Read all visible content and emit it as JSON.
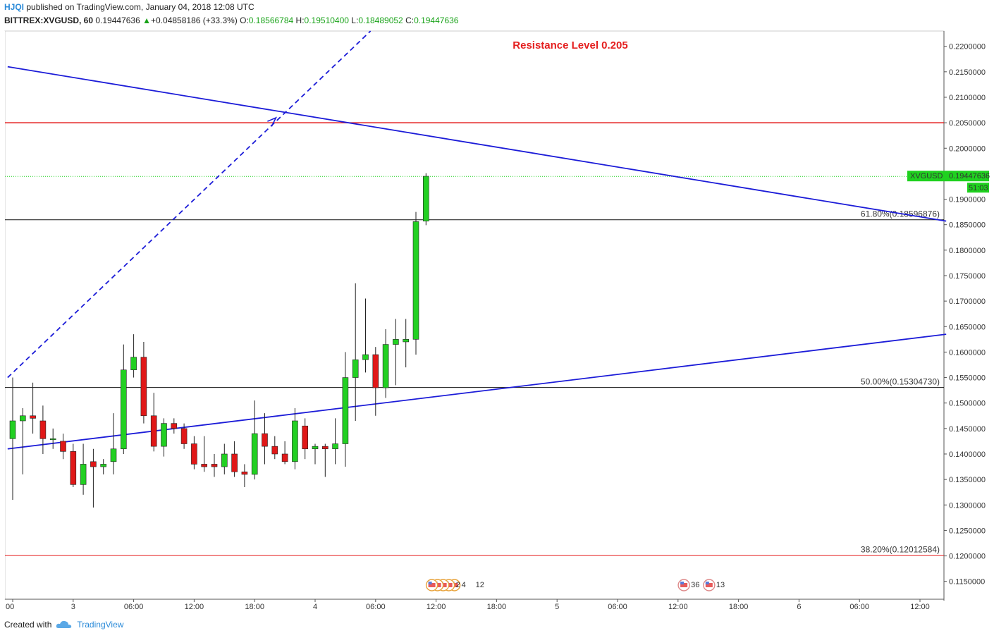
{
  "header": {
    "user": "HJQI",
    "published": "published on TradingView.com, January 04, 2018 12:08 UTC",
    "symbol": "BITTREX:XVGUSD, 60",
    "last": "0.19447636",
    "change": "+0.04858186 (+33.3%)",
    "o_label": "O:",
    "o": "0.18566784",
    "h_label": "H:",
    "h": "0.19510400",
    "l_label": "L:",
    "l": "0.18489052",
    "c_label": "C:",
    "c": "0.19447636"
  },
  "footer": {
    "created": "Created with",
    "brand": "TradingView"
  },
  "colors": {
    "up": "#22d022",
    "down": "#e01818",
    "trend": "#1c1cd8",
    "resistance": "#e41e1e",
    "last": "#1fd11f"
  },
  "chart_data": {
    "type": "candlestick",
    "title": "Resistance Level 0.205",
    "ylim": [
      0.1115,
      0.223
    ],
    "y_ticks": [
      0.115,
      0.12,
      0.125,
      0.13,
      0.135,
      0.14,
      0.145,
      0.15,
      0.155,
      0.16,
      0.165,
      0.17,
      0.175,
      0.18,
      0.185,
      0.19,
      0.195,
      0.2,
      0.205,
      0.21,
      0.215,
      0.22
    ],
    "y_tick_labels": [
      "0.1150000",
      "0.1200000",
      "0.1250000",
      "0.1300000",
      "0.1350000",
      "0.1400000",
      "0.1450000",
      "0.1500000",
      "0.1550000",
      "0.1600000",
      "0.1650000",
      "0.1700000",
      "0.1750000",
      "0.1800000",
      "0.1850000",
      "0.1900000",
      "0.1950000",
      "0.2000000",
      "0.2050000",
      "0.2100000",
      "0.2150000",
      "0.2200000"
    ],
    "x_ticks": [
      {
        "i": 0,
        "label": "00"
      },
      {
        "i": 6,
        "label": "3"
      },
      {
        "i": 12,
        "label": "06:00"
      },
      {
        "i": 18,
        "label": "12:00"
      },
      {
        "i": 24,
        "label": "18:00"
      },
      {
        "i": 30,
        "label": "4"
      },
      {
        "i": 36,
        "label": "06:00"
      },
      {
        "i": 42,
        "label": "12:00"
      },
      {
        "i": 48,
        "label": "18:00"
      },
      {
        "i": 54,
        "label": "5"
      },
      {
        "i": 60,
        "label": "06:00"
      },
      {
        "i": 66,
        "label": "12:00"
      },
      {
        "i": 72,
        "label": "18:00"
      },
      {
        "i": 78,
        "label": "6"
      },
      {
        "i": 84,
        "label": "06:00"
      },
      {
        "i": 90,
        "label": "12:00"
      }
    ],
    "candles": [
      [
        0.143,
        0.155,
        0.131,
        0.1465
      ],
      [
        0.1465,
        0.149,
        0.136,
        0.1475
      ],
      [
        0.1475,
        0.154,
        0.144,
        0.147
      ],
      [
        0.1465,
        0.1495,
        0.14,
        0.143
      ],
      [
        0.143,
        0.145,
        0.141,
        0.143
      ],
      [
        0.1425,
        0.144,
        0.139,
        0.1405
      ],
      [
        0.1405,
        0.142,
        0.1335,
        0.134
      ],
      [
        0.134,
        0.142,
        0.132,
        0.138
      ],
      [
        0.1385,
        0.141,
        0.1295,
        0.1375
      ],
      [
        0.1375,
        0.139,
        0.136,
        0.138
      ],
      [
        0.1385,
        0.148,
        0.136,
        0.141
      ],
      [
        0.141,
        0.1615,
        0.14,
        0.1565
      ],
      [
        0.1565,
        0.1635,
        0.155,
        0.159
      ],
      [
        0.159,
        0.162,
        0.146,
        0.1475
      ],
      [
        0.1475,
        0.152,
        0.1405,
        0.1415
      ],
      [
        0.1415,
        0.147,
        0.1395,
        0.146
      ],
      [
        0.146,
        0.147,
        0.144,
        0.145
      ],
      [
        0.145,
        0.146,
        0.141,
        0.142
      ],
      [
        0.142,
        0.1435,
        0.137,
        0.138
      ],
      [
        0.138,
        0.1435,
        0.1365,
        0.1375
      ],
      [
        0.138,
        0.14,
        0.1355,
        0.1375
      ],
      [
        0.1375,
        0.142,
        0.136,
        0.14
      ],
      [
        0.14,
        0.1425,
        0.1355,
        0.1365
      ],
      [
        0.1365,
        0.138,
        0.1335,
        0.136
      ],
      [
        0.136,
        0.1505,
        0.135,
        0.144
      ],
      [
        0.144,
        0.148,
        0.138,
        0.1415
      ],
      [
        0.1415,
        0.1435,
        0.139,
        0.14
      ],
      [
        0.14,
        0.1425,
        0.138,
        0.1385
      ],
      [
        0.1385,
        0.149,
        0.137,
        0.1465
      ],
      [
        0.1455,
        0.147,
        0.139,
        0.141
      ],
      [
        0.141,
        0.142,
        0.138,
        0.1415
      ],
      [
        0.1415,
        0.142,
        0.1355,
        0.141
      ],
      [
        0.141,
        0.147,
        0.138,
        0.142
      ],
      [
        0.142,
        0.16,
        0.1375,
        0.155
      ],
      [
        0.155,
        0.1735,
        0.1465,
        0.1585
      ],
      [
        0.1585,
        0.1705,
        0.156,
        0.1595
      ],
      [
        0.1595,
        0.161,
        0.1475,
        0.153
      ],
      [
        0.153,
        0.1645,
        0.151,
        0.1615
      ],
      [
        0.1615,
        0.1665,
        0.1535,
        0.1625
      ],
      [
        0.162,
        0.1665,
        0.157,
        0.1625
      ],
      [
        0.1625,
        0.1875,
        0.1595,
        0.1856
      ],
      [
        0.1857,
        0.1951,
        0.1849,
        0.1945
      ]
    ],
    "resistance": 0.205,
    "last_price": {
      "label": "XVGUSD",
      "value": "0.19447636",
      "timer": "51:03",
      "price": 0.19447636
    },
    "fib_levels": [
      {
        "label": "61.80%(0.18596876)",
        "value": 0.18596876,
        "color": "#111111",
        "width": 1
      },
      {
        "label": "50.00%(0.15304730)",
        "value": 0.1530473,
        "color": "#111111",
        "width": 1
      },
      {
        "label": "38.20%(0.12012584)",
        "value": 0.12012584,
        "color": "#e41e1e",
        "width": 1
      }
    ],
    "trendlines": [
      {
        "name": "descending",
        "from": [
          -0.5,
          0.216
        ],
        "to": [
          92.6,
          0.1857
        ],
        "style": "solid"
      },
      {
        "name": "ascending",
        "from": [
          -0.5,
          0.141
        ],
        "to": [
          92.6,
          0.1635
        ],
        "style": "solid"
      },
      {
        "name": "projection",
        "from": [
          -0.5,
          0.155
        ],
        "to": [
          35.5,
          0.223
        ],
        "style": "dashed"
      }
    ],
    "events": [
      {
        "i": 42,
        "count": "4",
        "count2": "2",
        "count3": "12",
        "icons": 5
      },
      {
        "i": 67,
        "count": "36",
        "icons": 1
      },
      {
        "i": 69.5,
        "count": "13",
        "icons": 1
      }
    ]
  }
}
